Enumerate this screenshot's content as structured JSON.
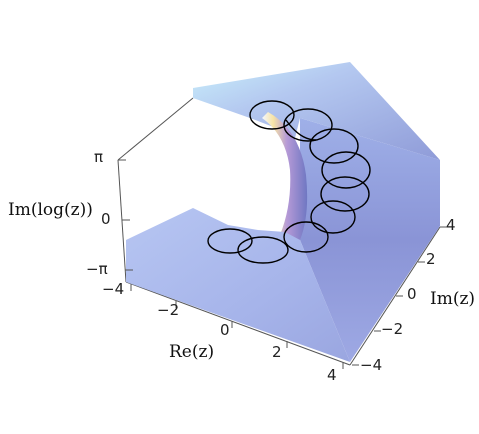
{
  "figure": {
    "z_axis_label": "Im(log(z))",
    "x_axis_label": "Re(z)",
    "y_axis_label": "Im(z)",
    "z_ticks": [
      "π",
      "0",
      "−π"
    ],
    "x_ticks": [
      "−4",
      "−2",
      "0",
      "2",
      "4"
    ],
    "y_ticks": [
      "−4",
      "−2",
      "0",
      "2",
      "4"
    ],
    "surface_colors": {
      "base": "#a9b6ea",
      "highlight": "#c9f0fb",
      "warm": "#f7e4a6",
      "shadow": "#6f77c2"
    },
    "curve_color": "#000000"
  }
}
